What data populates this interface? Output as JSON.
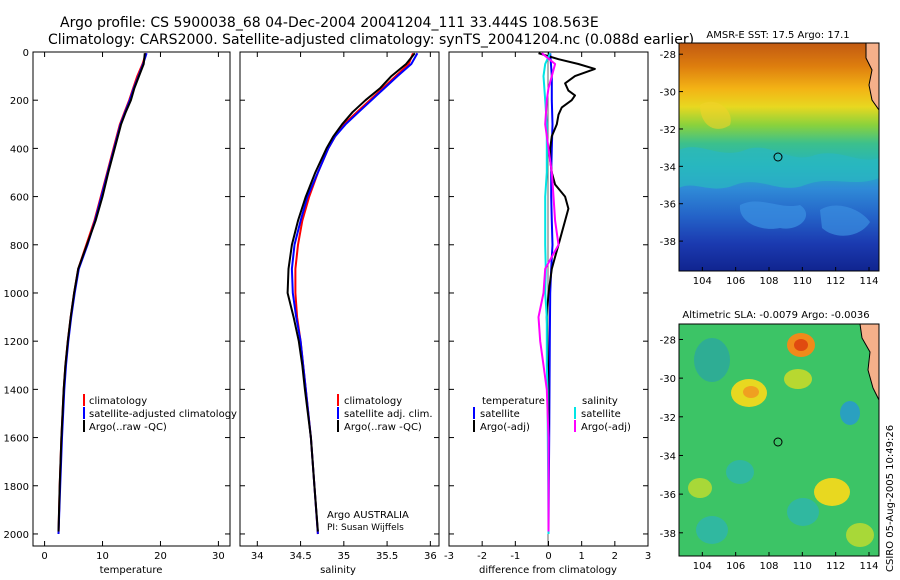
{
  "figure": {
    "title_line1": "Argo profile: CS 5900038_68 04-Dec-2004 20041204_111 33.444S 108.563E",
    "title_line2": "Climatology: CARS2000. Satellite-adjusted climatology: synTS_20041204.nc (0.088d earlier)",
    "footer_stamp": "CSIRO 05-Aug-2005 10:49:26"
  },
  "colors": {
    "climatology": "#ff0000",
    "satellite": "#0000ff",
    "argo": "#000000",
    "sat_sal": "#00e5e5",
    "argo_sal": "#ff00ff"
  },
  "chart_data": [
    {
      "id": "temperature",
      "type": "line",
      "xlabel": "temperature",
      "xlim": [
        -2,
        32
      ],
      "ylim": [
        2050,
        0
      ],
      "xticks": [
        0,
        10,
        20,
        30
      ],
      "yticks": [
        0,
        200,
        400,
        600,
        800,
        1000,
        1200,
        1400,
        1600,
        1800,
        2000
      ],
      "legend": [
        "climatology",
        "satellite-adjusted climatology",
        "Argo(..raw -QC)"
      ],
      "legend_position": "lower-right",
      "series": [
        {
          "name": "climatology",
          "color": "#ff0000",
          "depth": [
            5,
            50,
            100,
            150,
            200,
            250,
            300,
            400,
            500,
            600,
            700,
            800,
            900,
            1000,
            1100,
            1200,
            1300,
            1400,
            1600,
            1800,
            2000
          ],
          "values": [
            17.5,
            16.9,
            16.0,
            15.3,
            14.6,
            13.8,
            13.0,
            11.9,
            10.8,
            9.7,
            8.6,
            7.2,
            5.8,
            5.1,
            4.5,
            4.0,
            3.6,
            3.3,
            2.9,
            2.6,
            2.4
          ]
        },
        {
          "name": "satellite-adjusted climatology",
          "color": "#0000ff",
          "depth": [
            5,
            50,
            100,
            150,
            200,
            250,
            300,
            400,
            500,
            600,
            700,
            800,
            900,
            1000,
            1100,
            1200,
            1300,
            1400,
            1600,
            1800,
            2000
          ],
          "values": [
            17.6,
            17.0,
            16.2,
            15.4,
            14.7,
            13.9,
            13.1,
            12.0,
            10.9,
            9.8,
            8.7,
            7.4,
            5.9,
            5.2,
            4.6,
            4.1,
            3.7,
            3.4,
            3.0,
            2.7,
            2.4
          ]
        },
        {
          "name": "Argo(..raw -QC)",
          "color": "#000000",
          "depth": [
            5,
            50,
            100,
            150,
            200,
            250,
            300,
            400,
            500,
            600,
            700,
            800,
            900,
            1000,
            1100,
            1200,
            1300,
            1400,
            1600,
            1800,
            1990
          ],
          "values": [
            17.3,
            17.1,
            16.3,
            15.5,
            14.9,
            14.0,
            13.2,
            12.1,
            11.0,
            10.0,
            8.8,
            7.3,
            5.8,
            5.1,
            4.5,
            4.0,
            3.6,
            3.3,
            2.9,
            2.6,
            2.4
          ]
        }
      ]
    },
    {
      "id": "salinity",
      "type": "line",
      "xlabel": "salinity",
      "xlim": [
        33.8,
        36.1
      ],
      "ylim": [
        2050,
        0
      ],
      "xticks": [
        34,
        34.5,
        35,
        35.5,
        36
      ],
      "legend": [
        "climatology",
        "satellite adj. clim.",
        "Argo(..raw -QC)"
      ],
      "legend_position": "lower-right",
      "annotation_line1": "Argo AUSTRALIA",
      "annotation_line2": "PI: Susan Wijffels",
      "series": [
        {
          "name": "climatology",
          "color": "#ff0000",
          "depth": [
            5,
            50,
            100,
            150,
            200,
            250,
            300,
            350,
            400,
            500,
            600,
            700,
            800,
            900,
            1000,
            1100,
            1200,
            1300,
            1400,
            1600,
            1800,
            2000
          ],
          "values": [
            35.8,
            35.75,
            35.6,
            35.45,
            35.3,
            35.15,
            35.0,
            34.9,
            34.82,
            34.7,
            34.6,
            34.52,
            34.47,
            34.44,
            34.44,
            34.46,
            34.5,
            34.53,
            34.56,
            34.62,
            34.66,
            34.7
          ]
        },
        {
          "name": "satellite adj. clim.",
          "color": "#0000ff",
          "depth": [
            5,
            50,
            100,
            150,
            200,
            250,
            300,
            350,
            400,
            500,
            600,
            700,
            800,
            900,
            1000,
            1100,
            1200,
            1300,
            1400,
            1600,
            1800,
            2000
          ],
          "values": [
            35.85,
            35.78,
            35.62,
            35.47,
            35.32,
            35.17,
            35.02,
            34.9,
            34.82,
            34.7,
            34.58,
            34.5,
            34.43,
            34.4,
            34.41,
            34.45,
            34.5,
            34.53,
            34.56,
            34.62,
            34.66,
            34.7
          ]
        },
        {
          "name": "Argo(..raw -QC)",
          "color": "#000000",
          "depth": [
            5,
            50,
            100,
            150,
            200,
            250,
            300,
            350,
            400,
            500,
            600,
            700,
            800,
            900,
            1000,
            1100,
            1200,
            1300,
            1400,
            1600,
            1800,
            1990
          ],
          "values": [
            35.82,
            35.72,
            35.55,
            35.42,
            35.25,
            35.1,
            34.98,
            34.88,
            34.8,
            34.67,
            34.56,
            34.47,
            34.4,
            34.36,
            34.35,
            34.42,
            34.48,
            34.52,
            34.55,
            34.62,
            34.66,
            34.7
          ]
        }
      ]
    },
    {
      "id": "difference",
      "type": "line",
      "xlabel": "difference from climatology",
      "xlim": [
        -3,
        3
      ],
      "ylim": [
        2050,
        0
      ],
      "xticks": [
        -3,
        -2,
        -1,
        0,
        1,
        2,
        3
      ],
      "legend_temperature_title": "temperature",
      "legend_temperature": [
        "satellite",
        "Argo(-adj)"
      ],
      "legend_salinity_title": "salinity",
      "legend_salinity": [
        "satellite",
        "Argo(-adj)"
      ],
      "series": [
        {
          "name": "temperature satellite",
          "color": "#0000ff",
          "depth": [
            5,
            100,
            200,
            300,
            400,
            500,
            600,
            700,
            800,
            900,
            1000,
            1200,
            1400,
            1600,
            1800,
            2000
          ],
          "values": [
            0.05,
            0.1,
            0.1,
            0.12,
            0.1,
            0.08,
            0.08,
            0.1,
            0.12,
            0.08,
            0.05,
            0.04,
            0.03,
            0.02,
            0.01,
            0.0
          ]
        },
        {
          "name": "temperature Argo(-adj)",
          "color": "#000000",
          "depth": [
            5,
            30,
            50,
            70,
            100,
            130,
            160,
            180,
            200,
            230,
            260,
            300,
            350,
            400,
            450,
            500,
            550,
            600,
            650,
            700,
            750,
            800,
            850,
            900,
            950,
            1000,
            1100,
            1200,
            1400,
            1600,
            1800,
            1990
          ],
          "values": [
            -0.3,
            0.3,
            0.9,
            1.4,
            0.8,
            0.5,
            0.6,
            0.8,
            0.7,
            0.4,
            0.3,
            0.25,
            0.1,
            0.05,
            0.05,
            0.1,
            0.2,
            0.5,
            0.6,
            0.5,
            0.4,
            0.3,
            0.2,
            0.1,
            0.05,
            0.0,
            -0.05,
            -0.03,
            0.0,
            0.0,
            0.0,
            0.0
          ]
        },
        {
          "name": "salinity satellite",
          "color": "#00e5e5",
          "depth": [
            5,
            50,
            100,
            200,
            300,
            400,
            500,
            600,
            700,
            800,
            900,
            1000,
            1100,
            1200,
            1300,
            1400,
            1600,
            1800,
            2000
          ],
          "values": [
            0.05,
            -0.1,
            -0.15,
            -0.1,
            -0.05,
            -0.05,
            -0.05,
            -0.1,
            -0.1,
            -0.1,
            -0.08,
            -0.1,
            -0.05,
            -0.05,
            -0.05,
            -0.03,
            -0.02,
            -0.01,
            0.0
          ]
        },
        {
          "name": "salinity Argo(-adj)",
          "color": "#ff00ff",
          "depth": [
            5,
            50,
            100,
            150,
            200,
            300,
            400,
            500,
            600,
            700,
            800,
            850,
            900,
            1000,
            1100,
            1200,
            1300,
            1400,
            1600,
            1800,
            1990
          ],
          "values": [
            -0.2,
            0.2,
            0.1,
            0.0,
            -0.05,
            -0.1,
            0.0,
            0.1,
            0.15,
            0.2,
            0.3,
            0.1,
            -0.1,
            -0.15,
            -0.3,
            -0.25,
            -0.15,
            -0.05,
            0.0,
            0.0,
            0.0
          ]
        }
      ]
    },
    {
      "id": "sst_map",
      "type": "heatmap",
      "title": "AMSR-E SST: 17.5 Argo: 17.1",
      "xlim": [
        102.6,
        114.6
      ],
      "ylim": [
        -39.6,
        -27.4
      ],
      "xticks": [
        104,
        106,
        108,
        110,
        112,
        114
      ],
      "yticks": [
        -28,
        -30,
        -32,
        -34,
        -36,
        -38
      ],
      "profile_marker": {
        "lon": 108.563,
        "lat": -33.444
      }
    },
    {
      "id": "sla_map",
      "type": "heatmap",
      "title": "Altimetric SLA: -0.0079 Argo: -0.0036",
      "xlim": [
        102.6,
        114.6
      ],
      "ylim": [
        -39.2,
        -27.2
      ],
      "xticks": [
        104,
        106,
        108,
        110,
        112,
        114
      ],
      "yticks": [
        -28,
        -30,
        -32,
        -34,
        -36,
        -38
      ],
      "profile_marker": {
        "lon": 108.563,
        "lat": -33.444
      }
    }
  ]
}
